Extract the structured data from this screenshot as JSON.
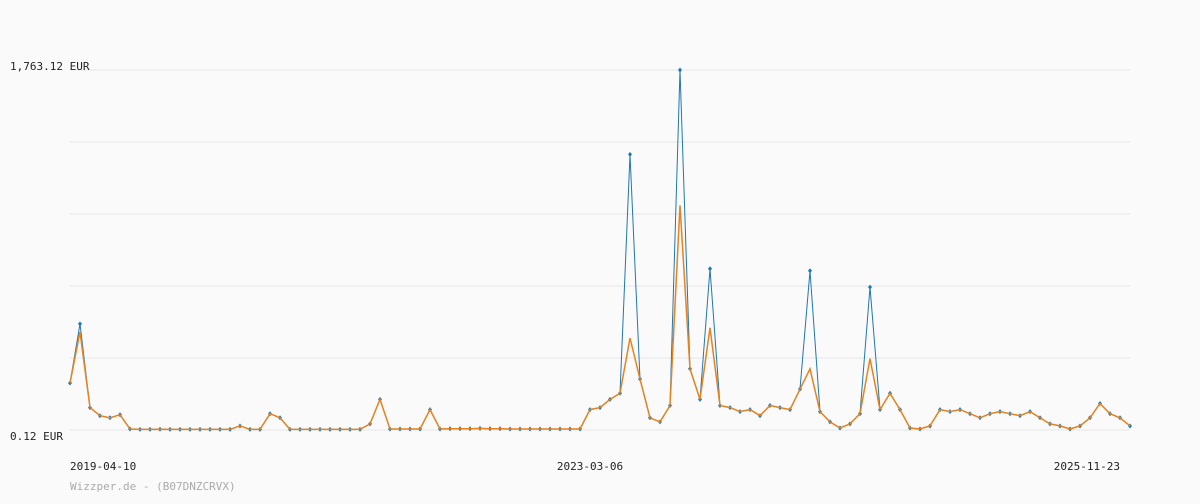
{
  "chart_data": {
    "type": "line",
    "footer": "Wizzper.de - (B07DNZCRVX)",
    "categories": [
      "2019-04-10",
      null,
      null,
      null,
      null,
      null,
      null,
      null,
      null,
      null,
      null,
      null,
      null,
      null,
      null,
      null,
      null,
      null,
      null,
      null,
      null,
      null,
      null,
      null,
      null,
      null,
      null,
      null,
      null,
      null,
      null,
      null,
      null,
      null,
      null,
      null,
      null,
      null,
      null,
      null,
      null,
      null,
      null,
      null,
      null,
      null,
      null,
      null,
      null,
      null,
      null,
      null,
      "2023-03-06",
      null,
      null,
      null,
      null,
      null,
      null,
      null,
      null,
      null,
      null,
      null,
      null,
      null,
      null,
      null,
      null,
      null,
      null,
      null,
      null,
      null,
      null,
      null,
      null,
      null,
      null,
      null,
      null,
      null,
      null,
      null,
      null,
      null,
      null,
      null,
      null,
      null,
      null,
      null,
      null,
      null,
      null,
      null,
      null,
      null,
      null,
      null,
      null,
      null,
      null,
      null,
      null,
      null,
      "2025-11-23"
    ],
    "series": [
      {
        "color": "#1f77b4",
        "markers": true,
        "values": [
          230,
          520,
          110,
          70,
          60,
          75,
          5,
          3,
          3,
          4,
          3,
          3,
          3,
          3,
          3,
          3,
          3,
          20,
          3,
          3,
          80,
          60,
          3,
          3,
          3,
          3,
          3,
          3,
          3,
          3,
          30,
          150,
          5,
          5,
          5,
          5,
          100,
          5,
          6,
          6,
          6,
          8,
          6,
          6,
          5,
          5,
          5,
          5,
          5,
          5,
          5,
          5,
          100,
          110,
          150,
          180,
          1350,
          250,
          60,
          40,
          120,
          1763,
          300,
          150,
          790,
          120,
          110,
          90,
          100,
          70,
          120,
          110,
          100,
          200,
          780,
          90,
          40,
          10,
          30,
          80,
          700,
          100,
          180,
          100,
          10,
          5,
          20,
          100,
          90,
          100,
          80,
          60,
          80,
          90,
          80,
          70,
          90,
          60,
          30,
          20,
          5,
          20,
          60,
          130,
          80,
          60,
          20
        ]
      },
      {
        "color": "#e8821e",
        "markers": false,
        "values": [
          230,
          480,
          110,
          70,
          60,
          75,
          5,
          3,
          3,
          4,
          3,
          3,
          3,
          3,
          3,
          3,
          3,
          20,
          3,
          3,
          80,
          60,
          3,
          3,
          3,
          3,
          3,
          3,
          3,
          3,
          30,
          150,
          5,
          5,
          5,
          5,
          100,
          5,
          6,
          6,
          6,
          8,
          6,
          6,
          5,
          5,
          5,
          5,
          5,
          5,
          5,
          5,
          100,
          110,
          150,
          180,
          450,
          250,
          60,
          40,
          120,
          1100,
          300,
          150,
          500,
          120,
          110,
          90,
          100,
          70,
          120,
          110,
          100,
          200,
          300,
          90,
          40,
          10,
          30,
          80,
          350,
          100,
          180,
          100,
          10,
          5,
          20,
          100,
          90,
          100,
          80,
          60,
          80,
          90,
          80,
          70,
          90,
          60,
          30,
          20,
          5,
          20,
          60,
          130,
          80,
          60,
          20
        ]
      }
    ],
    "ylim": [
      0.12,
      1763.12
    ],
    "yticks": [
      {
        "value": 0.12,
        "label": "0.12 EUR"
      },
      {
        "value": 1763.12,
        "label": "1,763.12 EUR"
      }
    ],
    "ygrid": [
      352.72,
      705.32,
      1057.92,
      1410.52
    ],
    "grid": true
  }
}
